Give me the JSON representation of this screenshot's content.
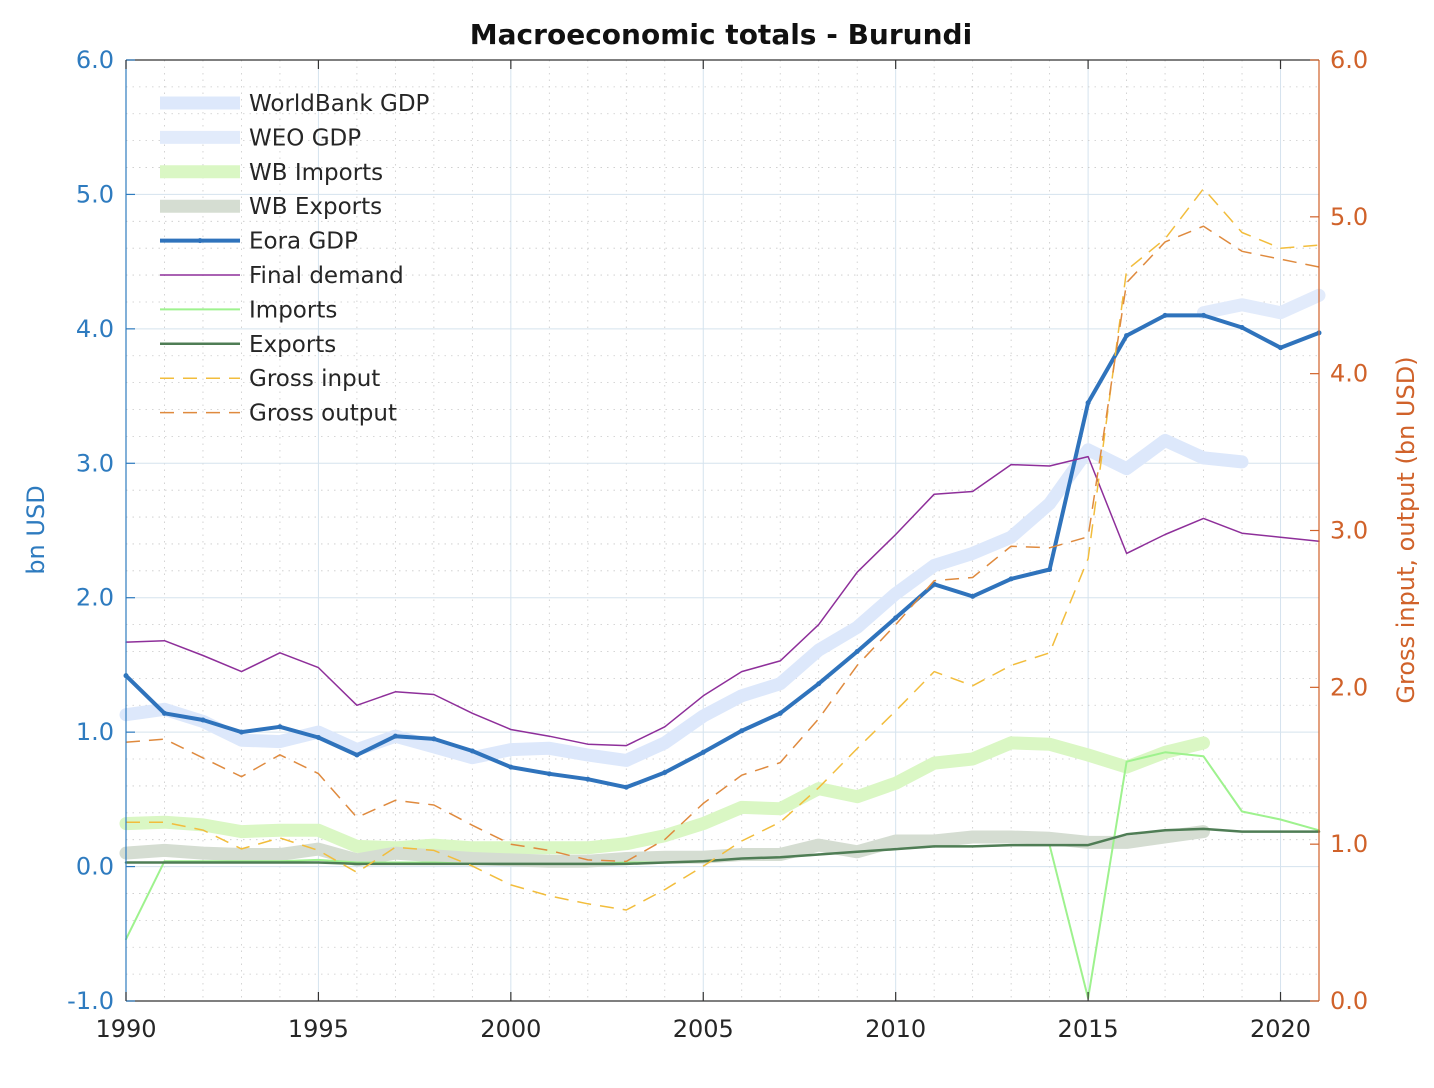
{
  "chart_data": {
    "type": "line",
    "title": "Macroeconomic totals - Burundi",
    "ylabel": "bn USD",
    "y2label": "Gross input, output (bn USD)",
    "xlim": [
      1990,
      2021
    ],
    "ylim": [
      -1,
      6
    ],
    "y2lim": [
      0,
      6
    ],
    "x_ticks": [
      1990,
      1995,
      2000,
      2005,
      2010,
      2015,
      2020
    ],
    "y_ticks": [
      "-1.0",
      "0.0",
      "1.0",
      "2.0",
      "3.0",
      "4.0",
      "5.0",
      "6.0"
    ],
    "y2_ticks": [
      "0.0",
      "1.0",
      "2.0",
      "3.0",
      "4.0",
      "5.0",
      "6.0"
    ],
    "grid": true,
    "legend_position": "top-left",
    "colors": {
      "left_axis": "#2e7bbf",
      "right_axis": "#d0622a",
      "title": "#111111"
    },
    "series": [
      {
        "name": "WorldBank GDP",
        "axis": "left",
        "color": "#dde8fb",
        "width": 13,
        "style": "solid",
        "x": [
          1990,
          1991,
          1992,
          1993,
          1994,
          1995,
          1996,
          1997,
          1998,
          1999,
          2000,
          2001,
          2002,
          2003,
          2004,
          2005,
          2006,
          2007,
          2008,
          2009,
          2010,
          2011,
          2012,
          2013,
          2014,
          2015,
          2016,
          2017,
          2018,
          2019,
          2020,
          2021
        ],
        "values": [
          1.13,
          1.17,
          1.08,
          0.94,
          0.93,
          1.0,
          0.87,
          0.97,
          0.89,
          0.81,
          0.87,
          0.88,
          0.83,
          0.79,
          0.92,
          1.12,
          1.27,
          1.36,
          1.61,
          1.78,
          2.03,
          2.24,
          2.33,
          2.45,
          2.7,
          3.1,
          2.96,
          3.17,
          3.04,
          3.01,
          null,
          null
        ]
      },
      {
        "name": "WEO GDP",
        "axis": "left",
        "color": "#e2ebfb",
        "width": 13,
        "style": "solid",
        "x": [
          2018,
          2019,
          2020,
          2021
        ],
        "values": [
          4.12,
          4.18,
          4.12,
          4.25
        ]
      },
      {
        "name": "WB Imports",
        "axis": "left",
        "color": "#daf7c4",
        "width": 13,
        "style": "solid",
        "x": [
          1990,
          1991,
          1992,
          1993,
          1994,
          1995,
          1996,
          1997,
          1998,
          1999,
          2000,
          2001,
          2002,
          2003,
          2004,
          2005,
          2006,
          2007,
          2008,
          2009,
          2010,
          2011,
          2012,
          2013,
          2014,
          2015,
          2016,
          2017,
          2018
        ],
        "values": [
          0.32,
          0.33,
          0.31,
          0.26,
          0.27,
          0.27,
          0.15,
          0.14,
          0.16,
          0.14,
          0.14,
          0.14,
          0.14,
          0.17,
          0.23,
          0.32,
          0.44,
          0.43,
          0.58,
          0.52,
          0.62,
          0.77,
          0.8,
          0.92,
          0.91,
          0.83,
          0.74,
          0.85,
          0.92
        ]
      },
      {
        "name": "WB Exports",
        "axis": "left",
        "color": "#d5ddd2",
        "width": 13,
        "style": "solid",
        "x": [
          1990,
          1991,
          1992,
          1993,
          1994,
          1995,
          1996,
          1997,
          1998,
          1999,
          2000,
          2001,
          2002,
          2003,
          2004,
          2005,
          2006,
          2007,
          2008,
          2009,
          2010,
          2011,
          2012,
          2013,
          2014,
          2015,
          2016,
          2017,
          2018
        ],
        "values": [
          0.1,
          0.12,
          0.1,
          0.09,
          0.09,
          0.13,
          0.05,
          0.1,
          0.08,
          0.06,
          0.05,
          0.04,
          0.04,
          0.06,
          0.07,
          0.07,
          0.09,
          0.09,
          0.16,
          0.11,
          0.19,
          0.19,
          0.22,
          0.22,
          0.21,
          0.18,
          0.18,
          0.22,
          0.26
        ]
      },
      {
        "name": "Eora GDP",
        "axis": "left",
        "color": "#2f73bc",
        "width": 4,
        "style": "solid",
        "markers": true,
        "x": [
          1990,
          1991,
          1992,
          1993,
          1994,
          1995,
          1996,
          1997,
          1998,
          1999,
          2000,
          2001,
          2002,
          2003,
          2004,
          2005,
          2006,
          2007,
          2008,
          2009,
          2010,
          2011,
          2012,
          2013,
          2014,
          2015,
          2016,
          2017,
          2018,
          2019,
          2020,
          2021
        ],
        "values": [
          1.42,
          1.14,
          1.09,
          1.0,
          1.04,
          0.96,
          0.83,
          0.97,
          0.95,
          0.86,
          0.74,
          0.69,
          0.65,
          0.59,
          0.7,
          0.85,
          1.01,
          1.14,
          1.36,
          1.6,
          1.85,
          2.1,
          2.01,
          2.14,
          2.21,
          3.45,
          3.95,
          4.1,
          4.1,
          4.01,
          3.86,
          3.97
        ]
      },
      {
        "name": "Final demand",
        "axis": "left",
        "color": "#8e2f9a",
        "width": 1.5,
        "style": "solid",
        "x": [
          1990,
          1991,
          1992,
          1993,
          1994,
          1995,
          1996,
          1997,
          1998,
          1999,
          2000,
          2001,
          2002,
          2003,
          2004,
          2005,
          2006,
          2007,
          2008,
          2009,
          2010,
          2011,
          2012,
          2013,
          2014,
          2015,
          2016,
          2017,
          2018,
          2019,
          2020,
          2021
        ],
        "values": [
          1.67,
          1.68,
          1.57,
          1.45,
          1.59,
          1.48,
          1.2,
          1.3,
          1.28,
          1.14,
          1.02,
          0.97,
          0.91,
          0.9,
          1.04,
          1.27,
          1.45,
          1.53,
          1.8,
          2.19,
          2.47,
          2.77,
          2.79,
          2.99,
          2.98,
          3.05,
          2.33,
          2.47,
          2.59,
          2.48,
          2.45,
          2.42
        ]
      },
      {
        "name": "Imports",
        "axis": "left",
        "color": "#9ef28e",
        "width": 2,
        "style": "solid",
        "x": [
          1990,
          1991,
          1992,
          1993,
          1994,
          1995,
          1996,
          1997,
          1998,
          1999,
          2000,
          2001,
          2002,
          2003,
          2004,
          2005,
          2006,
          2007,
          2008,
          2009,
          2010,
          2011,
          2012,
          2013,
          2014,
          2015,
          2016,
          2017,
          2018,
          2019,
          2020,
          2021
        ],
        "values": [
          -0.54,
          0.04,
          0.04,
          0.04,
          0.04,
          0.05,
          0.03,
          0.03,
          0.03,
          0.02,
          0.02,
          0.02,
          0.02,
          0.03,
          0.03,
          0.04,
          0.06,
          0.07,
          0.09,
          0.11,
          0.13,
          0.15,
          0.15,
          0.16,
          0.16,
          -0.98,
          0.78,
          0.85,
          0.82,
          0.41,
          0.35,
          0.27
        ]
      },
      {
        "name": "Exports",
        "axis": "left",
        "color": "#4f7d55",
        "width": 2.5,
        "style": "solid",
        "x": [
          1990,
          1991,
          1992,
          1993,
          1994,
          1995,
          1996,
          1997,
          1998,
          1999,
          2000,
          2001,
          2002,
          2003,
          2004,
          2005,
          2006,
          2007,
          2008,
          2009,
          2010,
          2011,
          2012,
          2013,
          2014,
          2015,
          2016,
          2017,
          2018,
          2019,
          2020,
          2021
        ],
        "values": [
          0.03,
          0.03,
          0.03,
          0.03,
          0.03,
          0.03,
          0.02,
          0.02,
          0.02,
          0.02,
          0.02,
          0.02,
          0.02,
          0.02,
          0.03,
          0.04,
          0.06,
          0.07,
          0.09,
          0.11,
          0.13,
          0.15,
          0.15,
          0.16,
          0.16,
          0.16,
          0.24,
          0.27,
          0.28,
          0.26,
          0.26,
          0.26
        ]
      },
      {
        "name": "Gross input",
        "axis": "right",
        "color": "#f2bd3c",
        "width": 1.5,
        "style": "dashed",
        "x": [
          1990,
          1991,
          1992,
          1993,
          1994,
          1995,
          1996,
          1997,
          1998,
          1999,
          2000,
          2001,
          2002,
          2003,
          2004,
          2005,
          2006,
          2007,
          2008,
          2009,
          2010,
          2011,
          2012,
          2013,
          2014,
          2015,
          2016,
          2017,
          2018,
          2019,
          2020,
          2021
        ],
        "values": [
          1.14,
          1.14,
          1.09,
          0.97,
          1.04,
          0.96,
          0.82,
          0.98,
          0.96,
          0.86,
          0.74,
          0.67,
          0.62,
          0.58,
          0.71,
          0.86,
          1.02,
          1.14,
          1.36,
          1.61,
          1.85,
          2.1,
          2.01,
          2.14,
          2.22,
          2.82,
          4.66,
          4.86,
          5.18,
          4.9,
          4.8,
          4.82
        ]
      },
      {
        "name": "Gross output",
        "axis": "right",
        "color": "#df8a3e",
        "width": 1.5,
        "style": "dashed",
        "x": [
          1990,
          1991,
          1992,
          1993,
          1994,
          1995,
          1996,
          1997,
          1998,
          1999,
          2000,
          2001,
          2002,
          2003,
          2004,
          2005,
          2006,
          2007,
          2008,
          2009,
          2010,
          2011,
          2012,
          2013,
          2014,
          2015,
          2016,
          2017,
          2018,
          2019,
          2020,
          2021
        ],
        "values": [
          1.65,
          1.67,
          1.55,
          1.43,
          1.57,
          1.45,
          1.17,
          1.28,
          1.25,
          1.12,
          1.0,
          0.96,
          0.9,
          0.89,
          1.03,
          1.26,
          1.44,
          1.52,
          1.8,
          2.14,
          2.4,
          2.68,
          2.7,
          2.9,
          2.89,
          2.96,
          4.58,
          4.84,
          4.94,
          4.78,
          4.73,
          4.68
        ]
      }
    ]
  }
}
